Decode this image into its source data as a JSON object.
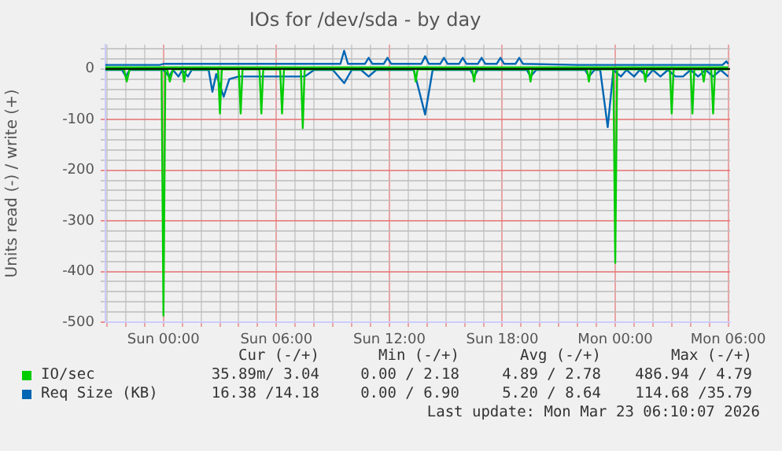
{
  "chart_data": {
    "type": "line",
    "title": "IOs for /dev/sda - by day",
    "ylabel": "Units read (-) / write (+)",
    "xlim": [
      "2026-03-21T20:55",
      "2026-03-23T06:06"
    ],
    "ylim": [
      -500,
      48
    ],
    "xticks": [
      {
        "value": "2026-03-21T21:00",
        "label": null
      },
      {
        "value": "2026-03-21T22:00",
        "label": null
      },
      {
        "value": "2026-03-21T23:00",
        "label": null
      },
      {
        "value": "2026-03-22T00:00",
        "label": "Sun 00:00"
      },
      {
        "value": "2026-03-22T01:00",
        "label": null
      },
      {
        "value": "2026-03-22T02:00",
        "label": null
      },
      {
        "value": "2026-03-22T03:00",
        "label": null
      },
      {
        "value": "2026-03-22T04:00",
        "label": null
      },
      {
        "value": "2026-03-22T05:00",
        "label": null
      },
      {
        "value": "2026-03-22T06:00",
        "label": "Sun 06:00"
      },
      {
        "value": "2026-03-22T07:00",
        "label": null
      },
      {
        "value": "2026-03-22T08:00",
        "label": null
      },
      {
        "value": "2026-03-22T09:00",
        "label": null
      },
      {
        "value": "2026-03-22T10:00",
        "label": null
      },
      {
        "value": "2026-03-22T11:00",
        "label": null
      },
      {
        "value": "2026-03-22T12:00",
        "label": "Sun 12:00"
      },
      {
        "value": "2026-03-22T13:00",
        "label": null
      },
      {
        "value": "2026-03-22T14:00",
        "label": null
      },
      {
        "value": "2026-03-22T15:00",
        "label": null
      },
      {
        "value": "2026-03-22T16:00",
        "label": null
      },
      {
        "value": "2026-03-22T17:00",
        "label": null
      },
      {
        "value": "2026-03-22T18:00",
        "label": "Sun 18:00"
      },
      {
        "value": "2026-03-22T19:00",
        "label": null
      },
      {
        "value": "2026-03-22T20:00",
        "label": null
      },
      {
        "value": "2026-03-22T21:00",
        "label": null
      },
      {
        "value": "2026-03-22T22:00",
        "label": null
      },
      {
        "value": "2026-03-22T23:00",
        "label": null
      },
      {
        "value": "2026-03-23T00:00",
        "label": "Mon 00:00"
      },
      {
        "value": "2026-03-23T01:00",
        "label": null
      },
      {
        "value": "2026-03-23T02:00",
        "label": null
      },
      {
        "value": "2026-03-23T03:00",
        "label": null
      },
      {
        "value": "2026-03-23T04:00",
        "label": null
      },
      {
        "value": "2026-03-23T05:00",
        "label": null
      },
      {
        "value": "2026-03-23T06:00",
        "label": "Mon 06:00"
      }
    ],
    "yticks": [
      -500,
      {
        "value": -480,
        "label": null
      },
      {
        "value": -460,
        "label": null
      },
      {
        "value": -440,
        "label": null
      },
      {
        "value": -420,
        "label": null
      },
      -400,
      {
        "value": -380,
        "label": null
      },
      {
        "value": -360,
        "label": null
      },
      {
        "value": -340,
        "label": null
      },
      {
        "value": -320,
        "label": null
      },
      -300,
      {
        "value": -280,
        "label": null
      },
      {
        "value": -260,
        "label": null
      },
      {
        "value": -240,
        "label": null
      },
      {
        "value": -220,
        "label": null
      },
      -200,
      {
        "value": -180,
        "label": null
      },
      {
        "value": -160,
        "label": null
      },
      {
        "value": -140,
        "label": null
      },
      {
        "value": -120,
        "label": null
      },
      -100,
      {
        "value": -80,
        "label": null
      },
      {
        "value": -60,
        "label": null
      },
      {
        "value": -40,
        "label": null
      },
      {
        "value": -20,
        "label": null
      },
      0,
      {
        "value": 20,
        "label": null
      },
      {
        "value": 40,
        "label": null
      }
    ],
    "grid": true,
    "legend": "bottom",
    "marker": "none",
    "line_style": "solid",
    "series": [
      {
        "name": "IO/sec",
        "color": "#00cc00",
        "x": [
          "2026-03-21T20:55",
          "2026-03-21T21:54",
          "2026-03-21T22:03",
          "2026-03-21T22:12",
          "2026-03-21T23:54",
          "2026-03-22T00:00",
          "2026-03-22T00:06",
          "2026-03-22T00:12",
          "2026-03-22T00:20",
          "2026-03-22T00:30",
          "2026-03-22T01:00",
          "2026-03-22T01:06",
          "2026-03-22T01:12",
          "2026-03-22T02:54",
          "2026-03-22T03:00",
          "2026-03-22T03:06",
          "2026-03-22T04:00",
          "2026-03-22T04:06",
          "2026-03-22T04:12",
          "2026-03-22T05:06",
          "2026-03-22T05:12",
          "2026-03-22T05:18",
          "2026-03-22T06:12",
          "2026-03-22T06:18",
          "2026-03-22T06:24",
          "2026-03-22T07:18",
          "2026-03-22T07:24",
          "2026-03-22T07:30",
          "2026-03-22T13:18",
          "2026-03-22T13:24",
          "2026-03-22T13:30",
          "2026-03-22T16:24",
          "2026-03-22T16:30",
          "2026-03-22T16:36",
          "2026-03-22T19:24",
          "2026-03-22T19:30",
          "2026-03-22T19:36",
          "2026-03-22T22:30",
          "2026-03-22T22:36",
          "2026-03-22T22:42",
          "2026-03-22T23:54",
          "2026-03-23T00:00",
          "2026-03-23T00:06",
          "2026-03-23T01:30",
          "2026-03-23T01:36",
          "2026-03-23T01:42",
          "2026-03-23T02:54",
          "2026-03-23T03:00",
          "2026-03-23T03:06",
          "2026-03-23T04:00",
          "2026-03-23T04:06",
          "2026-03-23T04:12",
          "2026-03-23T04:36",
          "2026-03-23T04:42",
          "2026-03-23T04:48",
          "2026-03-23T05:06",
          "2026-03-23T05:12",
          "2026-03-23T05:18",
          "2026-03-23T06:00"
        ],
        "values": [
          -1,
          -1,
          -25,
          -1,
          -1,
          -487,
          -1,
          -1,
          -25,
          -1,
          -1,
          -25,
          -1,
          -1,
          -88,
          -1,
          -1,
          -88,
          -1,
          -1,
          -88,
          -1,
          -1,
          -88,
          -1,
          -1,
          -117,
          -1,
          -1,
          -25,
          -1,
          -1,
          -25,
          -1,
          -1,
          -25,
          -1,
          -1,
          -25,
          -1,
          -1,
          -383,
          -1,
          -1,
          -25,
          -1,
          -1,
          -88,
          -1,
          -1,
          -88,
          -1,
          -1,
          -25,
          -1,
          -1,
          -88,
          -1,
          -1
        ]
      },
      {
        "color": "#00cc00",
        "x": [
          "2026-03-21T20:55",
          "2026-03-22T10:00",
          "2026-03-22T20:00",
          "2026-03-23T06:00"
        ],
        "values": [
          3,
          3,
          3,
          3
        ]
      },
      {
        "name": "Req Size (KB)",
        "color": "#0066b3",
        "x": [
          "2026-03-21T20:55",
          "2026-03-21T21:48",
          "2026-03-21T22:00",
          "2026-03-21T22:12",
          "2026-03-21T23:00",
          "2026-03-21T23:30",
          "2026-03-22T00:00",
          "2026-03-22T00:18",
          "2026-03-22T00:30",
          "2026-03-22T00:48",
          "2026-03-22T01:00",
          "2026-03-22T01:18",
          "2026-03-22T01:30",
          "2026-03-22T02:00",
          "2026-03-22T02:24",
          "2026-03-22T02:36",
          "2026-03-22T02:48",
          "2026-03-22T03:12",
          "2026-03-22T03:30",
          "2026-03-22T04:00",
          "2026-03-22T04:30",
          "2026-03-22T05:00",
          "2026-03-22T06:00",
          "2026-03-22T07:30",
          "2026-03-22T08:00",
          "2026-03-22T08:30",
          "2026-03-22T09:00",
          "2026-03-22T09:36",
          "2026-03-22T10:00",
          "2026-03-22T10:30",
          "2026-03-22T10:54",
          "2026-03-22T11:18",
          "2026-03-22T12:00",
          "2026-03-22T13:18",
          "2026-03-22T13:54",
          "2026-03-22T14:18",
          "2026-03-22T15:00",
          "2026-03-22T16:18",
          "2026-03-22T16:30",
          "2026-03-22T16:42",
          "2026-03-22T17:00",
          "2026-03-22T19:18",
          "2026-03-22T19:30",
          "2026-03-22T19:48",
          "2026-03-22T20:00",
          "2026-03-22T22:24",
          "2026-03-22T22:36",
          "2026-03-22T22:54",
          "2026-03-22T23:12",
          "2026-03-22T23:36",
          "2026-03-22T23:54",
          "2026-03-23T00:18",
          "2026-03-23T00:36",
          "2026-03-23T01:00",
          "2026-03-23T01:18",
          "2026-03-23T01:42",
          "2026-03-23T02:00",
          "2026-03-23T02:24",
          "2026-03-23T02:48",
          "2026-03-23T03:12",
          "2026-03-23T03:36",
          "2026-03-23T04:00",
          "2026-03-23T04:24",
          "2026-03-23T04:48",
          "2026-03-23T05:12",
          "2026-03-23T05:36",
          "2026-03-23T06:00"
        ],
        "values": [
          -2,
          -2,
          -15,
          -2,
          -2,
          -2,
          -2,
          -15,
          -2,
          -15,
          -2,
          -15,
          -2,
          -2,
          -2,
          -45,
          -10,
          -55,
          -20,
          -15,
          -15,
          -15,
          -15,
          -15,
          -2,
          -2,
          -2,
          -28,
          -2,
          -2,
          -15,
          -2,
          -2,
          -2,
          -90,
          -2,
          -2,
          -2,
          -15,
          -2,
          -2,
          -2,
          -15,
          -2,
          -2,
          -2,
          -15,
          -2,
          -2,
          -115,
          -2,
          -15,
          -2,
          -15,
          -2,
          -15,
          -2,
          -15,
          -2,
          -15,
          -15,
          -2,
          -15,
          -2,
          -15,
          -2,
          -15
        ]
      },
      {
        "color": "#0066b3",
        "x": [
          "2026-03-21T20:55",
          "2026-03-21T23:48",
          "2026-03-22T00:00",
          "2026-03-22T01:30",
          "2026-03-22T09:24",
          "2026-03-22T09:36",
          "2026-03-22T09:48",
          "2026-03-22T10:42",
          "2026-03-22T10:54",
          "2026-03-22T11:06",
          "2026-03-22T11:42",
          "2026-03-22T11:54",
          "2026-03-22T12:06",
          "2026-03-22T13:42",
          "2026-03-22T13:54",
          "2026-03-22T14:06",
          "2026-03-22T14:42",
          "2026-03-22T14:54",
          "2026-03-22T15:06",
          "2026-03-22T15:42",
          "2026-03-22T15:54",
          "2026-03-22T16:06",
          "2026-03-22T16:42",
          "2026-03-22T16:54",
          "2026-03-22T17:06",
          "2026-03-22T17:42",
          "2026-03-22T17:54",
          "2026-03-22T18:06",
          "2026-03-22T18:42",
          "2026-03-22T18:54",
          "2026-03-22T19:06",
          "2026-03-22T22:00",
          "2026-03-23T05:42",
          "2026-03-23T05:54",
          "2026-03-23T06:00"
        ],
        "values": [
          8,
          8,
          10,
          10,
          10,
          36,
          10,
          10,
          22,
          10,
          10,
          22,
          10,
          10,
          25,
          10,
          10,
          22,
          10,
          10,
          22,
          10,
          10,
          22,
          10,
          10,
          22,
          10,
          10,
          22,
          10,
          8,
          8,
          15,
          10
        ]
      }
    ],
    "annotations": [
      "Cur (-/+)",
      "Min (-/+)",
      "Avg (-/+)",
      "Max (-/+)",
      "35.89m/ 3.04",
      "0.00 / 2.18",
      "4.89 / 2.78",
      "486.94 / 4.79",
      "16.38 /14.18",
      "0.00 / 6.90",
      "5.20 / 8.64",
      "114.68 /35.79",
      "Last update: Mon Mar 23 06:10:07 2026"
    ]
  }
}
